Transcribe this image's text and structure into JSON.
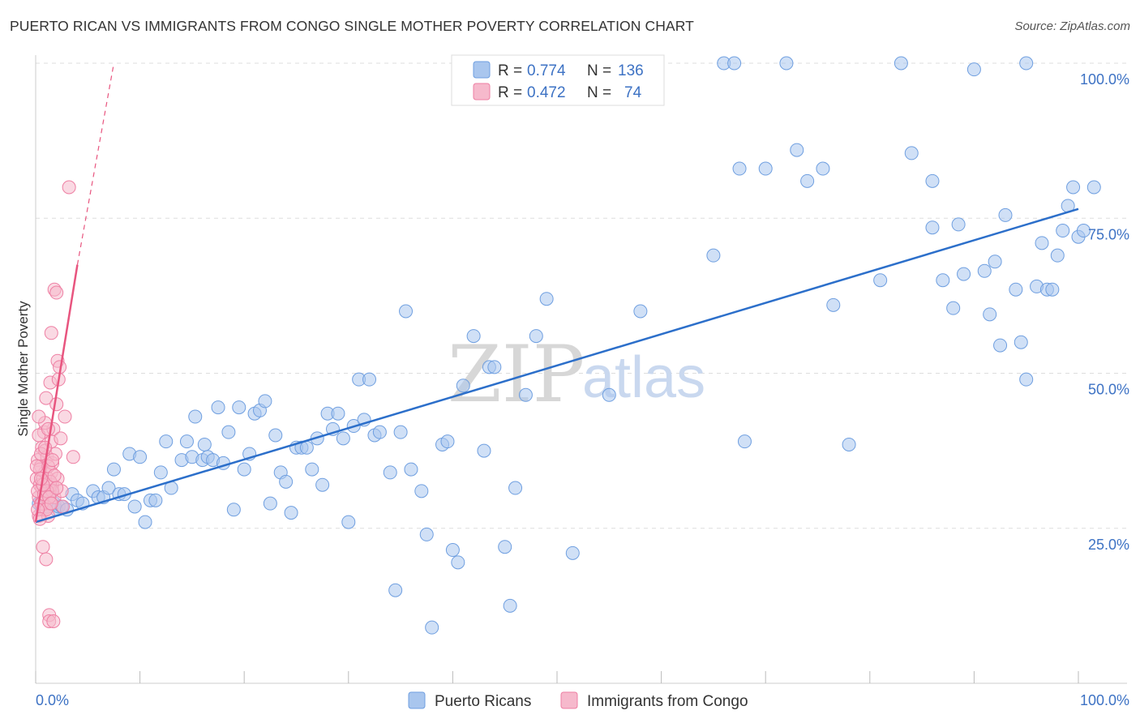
{
  "title": "PUERTO RICAN VS IMMIGRANTS FROM CONGO SINGLE MOTHER POVERTY CORRELATION CHART",
  "source": "Source: ZipAtlas.com",
  "watermark": {
    "zip": "ZIP",
    "atlas": "atlas"
  },
  "colors": {
    "blue": "#6f9fe0",
    "blue_fill": "#a9c6ee",
    "blue_line": "#2c6fca",
    "pink": "#ee7fa3",
    "pink_fill": "#f6b9cc",
    "pink_line": "#e8557f",
    "grid": "#dddddd"
  },
  "chart_data": {
    "type": "scatter",
    "title": "PUERTO RICAN VS IMMIGRANTS FROM CONGO SINGLE MOTHER POVERTY CORRELATION CHART",
    "xlabel": "",
    "ylabel": "Single Mother Poverty",
    "xlim": [
      0,
      100
    ],
    "ylim": [
      0,
      100
    ],
    "x_tick_labels": [
      "0.0%",
      "100.0%"
    ],
    "y_tick_labels": [
      "25.0%",
      "50.0%",
      "75.0%",
      "100.0%"
    ],
    "y_ticks": [
      25,
      50,
      75,
      100
    ],
    "grid": true,
    "legend_position": "top-center",
    "legend": [
      {
        "series": "Puerto Ricans",
        "r_label": "R =",
        "r": "0.774",
        "n_label": "N =",
        "n": "136"
      },
      {
        "series": "Immigrants from Congo",
        "r_label": "R =",
        "r": "0.472",
        "n_label": "N =",
        "n": "74"
      }
    ],
    "series": [
      {
        "name": "Puerto Ricans",
        "trend": {
          "x": [
            0,
            100
          ],
          "y": [
            26,
            76.5
          ]
        },
        "points": [
          [
            0.3,
            29
          ],
          [
            0.6,
            28
          ],
          [
            0.8,
            29.5
          ],
          [
            1,
            30
          ],
          [
            1.2,
            28.5
          ],
          [
            1.5,
            31
          ],
          [
            1.8,
            29
          ],
          [
            2,
            28
          ],
          [
            2.2,
            28.5
          ],
          [
            2.5,
            28.5
          ],
          [
            3,
            28
          ],
          [
            3.5,
            30.5
          ],
          [
            4,
            29.5
          ],
          [
            4.5,
            29
          ],
          [
            5.5,
            31
          ],
          [
            6,
            30
          ],
          [
            6.5,
            30
          ],
          [
            7,
            31.5
          ],
          [
            7.5,
            34.5
          ],
          [
            8,
            30.5
          ],
          [
            8.5,
            30.5
          ],
          [
            9,
            37
          ],
          [
            9.5,
            28.5
          ],
          [
            10,
            36.5
          ],
          [
            10.5,
            26
          ],
          [
            11,
            29.5
          ],
          [
            11.5,
            29.5
          ],
          [
            12,
            34
          ],
          [
            12.5,
            39
          ],
          [
            13,
            31.5
          ],
          [
            14,
            36
          ],
          [
            14.5,
            39
          ],
          [
            15,
            36.5
          ],
          [
            15.3,
            43
          ],
          [
            16,
            36
          ],
          [
            16.2,
            38.5
          ],
          [
            16.5,
            36.5
          ],
          [
            17,
            36
          ],
          [
            17.5,
            44.5
          ],
          [
            18,
            35.5
          ],
          [
            18.5,
            40.5
          ],
          [
            19,
            28
          ],
          [
            19.5,
            44.5
          ],
          [
            20,
            34.5
          ],
          [
            20.5,
            37
          ],
          [
            21,
            43.5
          ],
          [
            21.5,
            44
          ],
          [
            22,
            45.5
          ],
          [
            22.5,
            29
          ],
          [
            23,
            40
          ],
          [
            23.5,
            34
          ],
          [
            24,
            32.5
          ],
          [
            24.5,
            27.5
          ],
          [
            25,
            38
          ],
          [
            25.5,
            38
          ],
          [
            26,
            38
          ],
          [
            26.5,
            34.5
          ],
          [
            27,
            39.5
          ],
          [
            27.5,
            32
          ],
          [
            28,
            43.5
          ],
          [
            28.5,
            41
          ],
          [
            29,
            43.5
          ],
          [
            29.5,
            39.5
          ],
          [
            30,
            26
          ],
          [
            30.5,
            41.5
          ],
          [
            31,
            49
          ],
          [
            31.5,
            42.5
          ],
          [
            32,
            49
          ],
          [
            32.5,
            40
          ],
          [
            33,
            40.5
          ],
          [
            34,
            34
          ],
          [
            34.5,
            15
          ],
          [
            35,
            40.5
          ],
          [
            35.5,
            60
          ],
          [
            36,
            34.5
          ],
          [
            37,
            31
          ],
          [
            37.5,
            24
          ],
          [
            38,
            9
          ],
          [
            39,
            38.5
          ],
          [
            39.5,
            39
          ],
          [
            40,
            21.5
          ],
          [
            40.5,
            19.5
          ],
          [
            41,
            48
          ],
          [
            42,
            56
          ],
          [
            43,
            37.5
          ],
          [
            43.5,
            51
          ],
          [
            44,
            51
          ],
          [
            45,
            22
          ],
          [
            45.5,
            12.5
          ],
          [
            46,
            31.5
          ],
          [
            47,
            46.5
          ],
          [
            48,
            56
          ],
          [
            49,
            62
          ],
          [
            51.5,
            21
          ],
          [
            55,
            46.5
          ],
          [
            58,
            60
          ],
          [
            65,
            69
          ],
          [
            66,
            100
          ],
          [
            67,
            100
          ],
          [
            67.5,
            83
          ],
          [
            68,
            39
          ],
          [
            70,
            83
          ],
          [
            72,
            100
          ],
          [
            73,
            86
          ],
          [
            74,
            81
          ],
          [
            75.5,
            83
          ],
          [
            76.5,
            61
          ],
          [
            78,
            38.5
          ],
          [
            81,
            65
          ],
          [
            83,
            100
          ],
          [
            84,
            85.5
          ],
          [
            86,
            81
          ],
          [
            86,
            73.5
          ],
          [
            87,
            65
          ],
          [
            88,
            60.5
          ],
          [
            88.5,
            74
          ],
          [
            89,
            66
          ],
          [
            90,
            99
          ],
          [
            91,
            66.5
          ],
          [
            91.5,
            59.5
          ],
          [
            92,
            68
          ],
          [
            92.5,
            54.5
          ],
          [
            93,
            75.5
          ],
          [
            94,
            63.5
          ],
          [
            94.5,
            55
          ],
          [
            95,
            49
          ],
          [
            96,
            64
          ],
          [
            96.5,
            71
          ],
          [
            97,
            63.5
          ],
          [
            97.5,
            63.5
          ],
          [
            98,
            69
          ],
          [
            98.5,
            73
          ],
          [
            99,
            77
          ],
          [
            99.5,
            80
          ],
          [
            100,
            72
          ],
          [
            100.5,
            73
          ],
          [
            101.5,
            80
          ],
          [
            95,
            100
          ]
        ]
      },
      {
        "name": "Immigrants from Congo",
        "trend": {
          "x": [
            0,
            4
          ],
          "y": [
            26,
            67.5
          ]
        },
        "trend_extended": {
          "x": [
            4,
            7.5
          ],
          "y": [
            67.5,
            100
          ]
        },
        "points": [
          [
            0.1,
            33
          ],
          [
            0.2,
            36
          ],
          [
            0.3,
            30
          ],
          [
            0.3,
            27
          ],
          [
            0.4,
            32
          ],
          [
            0.5,
            29
          ],
          [
            0.5,
            35
          ],
          [
            0.6,
            31.5
          ],
          [
            0.6,
            38
          ],
          [
            0.7,
            22
          ],
          [
            0.7,
            33
          ],
          [
            0.8,
            28
          ],
          [
            0.8,
            40.5
          ],
          [
            0.9,
            34
          ],
          [
            0.9,
            37.5
          ],
          [
            1,
            31
          ],
          [
            1,
            20
          ],
          [
            1,
            46
          ],
          [
            1.1,
            30
          ],
          [
            1.1,
            36.5
          ],
          [
            1.2,
            27
          ],
          [
            1.2,
            33
          ],
          [
            1.3,
            11
          ],
          [
            1.3,
            10
          ],
          [
            1.3,
            32
          ],
          [
            1.4,
            29
          ],
          [
            1.4,
            48.5
          ],
          [
            1.5,
            34
          ],
          [
            1.5,
            39
          ],
          [
            1.5,
            56.5
          ],
          [
            1.6,
            32
          ],
          [
            1.6,
            35.5
          ],
          [
            1.7,
            41
          ],
          [
            1.7,
            10
          ],
          [
            1.8,
            63.5
          ],
          [
            1.8,
            30
          ],
          [
            1.9,
            37
          ],
          [
            2,
            63
          ],
          [
            2,
            45
          ],
          [
            2.1,
            52
          ],
          [
            2.1,
            33
          ],
          [
            2.2,
            49
          ],
          [
            2.3,
            51
          ],
          [
            2.4,
            39.5
          ],
          [
            2.5,
            31
          ],
          [
            2.6,
            28.5
          ],
          [
            2.8,
            43
          ],
          [
            3.6,
            36.5
          ],
          [
            3.2,
            80
          ],
          [
            0.2,
            31
          ],
          [
            0.4,
            34.5
          ],
          [
            0.6,
            29
          ],
          [
            0.8,
            30.5
          ],
          [
            1,
            28
          ],
          [
            1.2,
            35
          ],
          [
            1.4,
            32.5
          ],
          [
            1.6,
            31
          ],
          [
            0.3,
            40
          ],
          [
            0.5,
            37
          ],
          [
            0.9,
            42
          ],
          [
            1.1,
            31
          ],
          [
            1.3,
            30
          ],
          [
            0.2,
            28
          ],
          [
            0.4,
            26.5
          ],
          [
            0.7,
            32
          ],
          [
            1.5,
            29
          ],
          [
            1.8,
            33.5
          ],
          [
            2,
            31.5
          ],
          [
            0.1,
            35
          ],
          [
            0.5,
            33
          ],
          [
            0.9,
            38
          ],
          [
            1.2,
            41
          ],
          [
            1.6,
            36
          ],
          [
            0.3,
            43
          ]
        ]
      }
    ]
  }
}
